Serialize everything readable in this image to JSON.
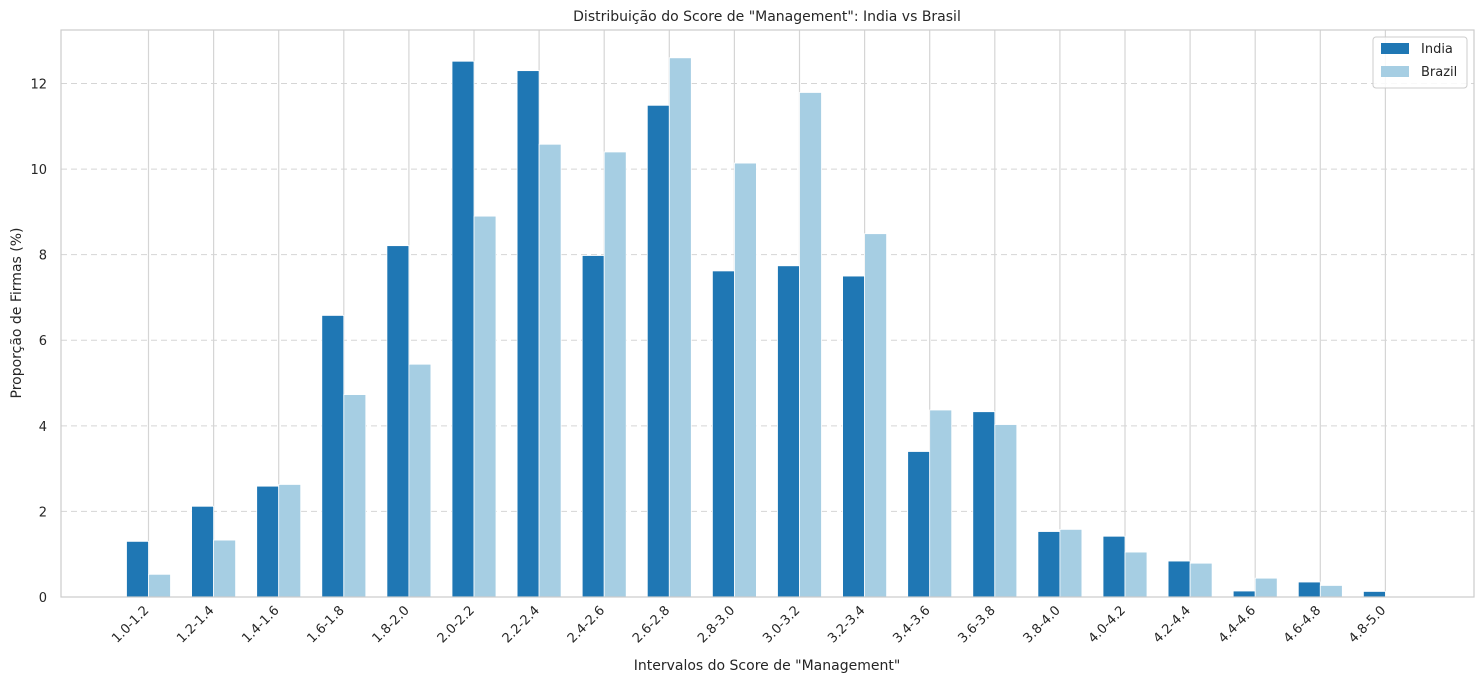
{
  "chart_data": {
    "type": "bar",
    "title": "Distribuição do Score de \"Management\": India vs Brasil",
    "xlabel": "Intervalos do Score de \"Management\"",
    "ylabel": "Proporção de Firmas (%)",
    "ylim": [
      0,
      13.25
    ],
    "yticks": [
      "0",
      "2",
      "4",
      "6",
      "8",
      "10",
      "12"
    ],
    "grid": "y-dashed, x-solid",
    "legend_position": "top-right",
    "categories": [
      "1.0-1.2",
      "1.2-1.4",
      "1.4-1.6",
      "1.6-1.8",
      "1.8-2.0",
      "2.0-2.2",
      "2.2-2.4",
      "2.4-2.6",
      "2.6-2.8",
      "2.8-3.0",
      "3.0-3.2",
      "3.2-3.4",
      "3.4-3.6",
      "3.6-3.8",
      "3.8-4.0",
      "4.0-4.2",
      "4.2-4.4",
      "4.4-4.6",
      "4.6-4.8",
      "4.8-5.0"
    ],
    "series": [
      {
        "name": "India",
        "color": "#1f77b4",
        "values": [
          1.3,
          2.12,
          2.59,
          6.58,
          8.21,
          12.52,
          12.3,
          7.98,
          11.49,
          7.62,
          7.74,
          7.5,
          3.4,
          4.33,
          1.53,
          1.42,
          0.84,
          0.14,
          0.35,
          0.13
        ]
      },
      {
        "name": "Brazil",
        "color": "#a6cee3",
        "values": [
          0.53,
          1.33,
          2.63,
          4.73,
          5.44,
          8.9,
          10.58,
          10.4,
          12.6,
          10.14,
          11.79,
          8.49,
          4.37,
          4.03,
          1.58,
          1.05,
          0.79,
          0.44,
          0.27,
          0.0
        ]
      }
    ]
  }
}
